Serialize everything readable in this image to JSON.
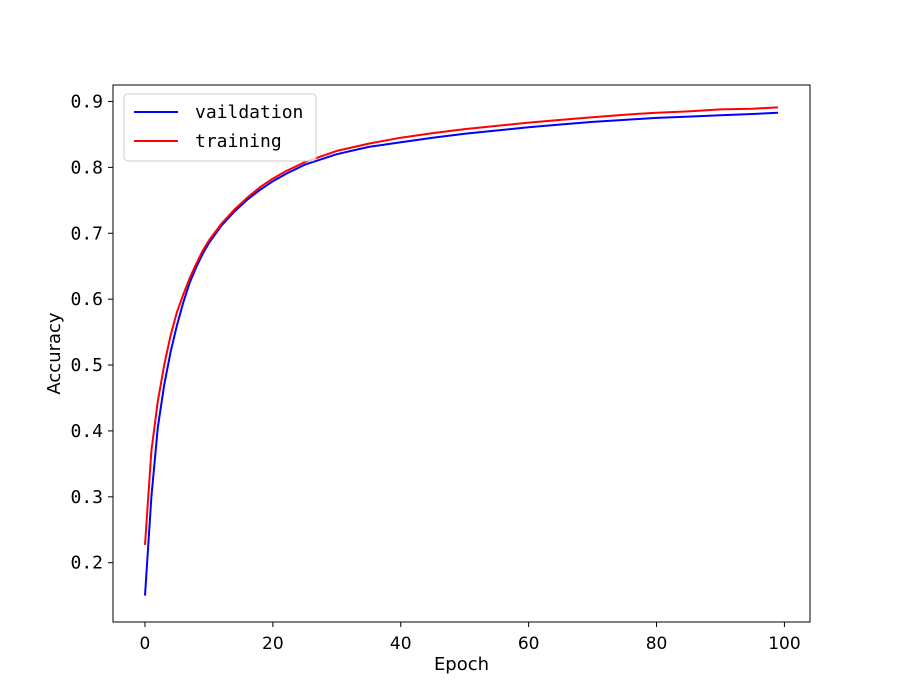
{
  "chart_data": {
    "type": "line",
    "xlabel": "Epoch",
    "ylabel": "Accuracy",
    "xlim": [
      -5,
      104
    ],
    "ylim": [
      0.11,
      0.925
    ],
    "xticks": [
      0,
      20,
      40,
      60,
      80,
      100
    ],
    "xtick_labels": [
      "0",
      "20",
      "40",
      "60",
      "80",
      "100"
    ],
    "yticks": [
      0.2,
      0.3,
      0.4,
      0.5,
      0.6,
      0.7,
      0.8,
      0.9
    ],
    "ytick_labels": [
      "0.2",
      "0.3",
      "0.4",
      "0.5",
      "0.6",
      "0.7",
      "0.8",
      "0.9"
    ],
    "grid": false,
    "legend_position": "top-left",
    "series": [
      {
        "name": "vaildation",
        "color": "#0000ff",
        "x": [
          0,
          1,
          2,
          3,
          4,
          5,
          6,
          7,
          8,
          9,
          10,
          12,
          14,
          16,
          18,
          20,
          22,
          25,
          30,
          35,
          40,
          45,
          50,
          55,
          60,
          65,
          70,
          75,
          80,
          85,
          90,
          95,
          99
        ],
        "values": [
          0.15,
          0.3,
          0.405,
          0.47,
          0.52,
          0.56,
          0.595,
          0.625,
          0.648,
          0.668,
          0.685,
          0.712,
          0.733,
          0.751,
          0.766,
          0.779,
          0.79,
          0.804,
          0.82,
          0.831,
          0.838,
          0.845,
          0.851,
          0.856,
          0.861,
          0.865,
          0.869,
          0.872,
          0.875,
          0.877,
          0.879,
          0.881,
          0.883
        ]
      },
      {
        "name": "training",
        "color": "#ff0000",
        "x": [
          0,
          1,
          2,
          3,
          4,
          5,
          6,
          7,
          8,
          9,
          10,
          12,
          14,
          16,
          18,
          20,
          22,
          25,
          30,
          35,
          40,
          45,
          50,
          55,
          60,
          65,
          70,
          75,
          80,
          85,
          90,
          95,
          99
        ],
        "values": [
          0.227,
          0.37,
          0.445,
          0.5,
          0.545,
          0.58,
          0.607,
          0.632,
          0.653,
          0.673,
          0.689,
          0.715,
          0.736,
          0.754,
          0.77,
          0.783,
          0.794,
          0.808,
          0.825,
          0.836,
          0.845,
          0.852,
          0.858,
          0.863,
          0.868,
          0.872,
          0.876,
          0.88,
          0.883,
          0.885,
          0.888,
          0.889,
          0.891
        ]
      }
    ]
  }
}
